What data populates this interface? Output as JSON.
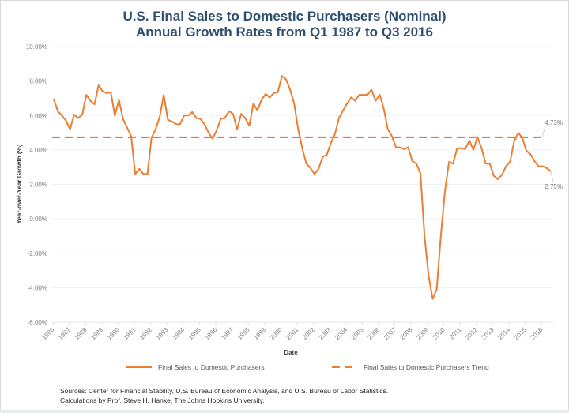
{
  "chart_data": {
    "type": "line",
    "title": "U.S. Final Sales to Domestic Purchasers (Nominal)",
    "subtitle": "Annual Growth Rates from Q1 1987 to Q3 2016",
    "xlabel": "Date",
    "ylabel": "Year-over-Year Growth (%)",
    "ylim": [
      -6,
      10
    ],
    "yticks": [
      "10.00%",
      "8.00%",
      "6.00%",
      "4.00%",
      "2.00%",
      "0.00%",
      "-2.00%",
      "-4.00%",
      "-6.00%"
    ],
    "ytick_values": [
      10,
      8,
      6,
      4,
      2,
      0,
      -2,
      -4,
      -6
    ],
    "xticks": [
      "1986",
      "1987",
      "1988",
      "1989",
      "1990",
      "1991",
      "1992",
      "1993",
      "1994",
      "1995",
      "1996",
      "1997",
      "1998",
      "1999",
      "2000",
      "2001",
      "2002",
      "2003",
      "2004",
      "2005",
      "2006",
      "2007",
      "2008",
      "2009",
      "2010",
      "2011",
      "2012",
      "2013",
      "2014",
      "2015",
      "2016"
    ],
    "x_start": "Q1 1987",
    "x_end": "Q3 2016",
    "grid": true,
    "legend_position": "bottom",
    "series": [
      {
        "name": "Final Sales to Domestic Purchasers",
        "color": "#ed7d31",
        "style": "solid",
        "values": [
          6.95,
          6.25,
          6.0,
          5.7,
          5.2,
          6.05,
          5.85,
          6.05,
          7.2,
          6.85,
          6.65,
          7.75,
          7.4,
          7.3,
          7.35,
          6.0,
          6.9,
          5.8,
          5.3,
          4.8,
          2.6,
          2.9,
          2.6,
          2.6,
          4.7,
          5.2,
          5.9,
          7.2,
          5.75,
          5.65,
          5.5,
          5.5,
          6.0,
          6.0,
          6.2,
          5.85,
          5.8,
          5.5,
          5.0,
          4.65,
          5.15,
          5.8,
          5.85,
          6.25,
          6.1,
          5.2,
          6.1,
          5.85,
          5.4,
          6.7,
          6.3,
          6.9,
          7.25,
          7.05,
          7.3,
          7.35,
          8.3,
          8.1,
          7.5,
          6.7,
          5.2,
          4.1,
          3.2,
          2.95,
          2.6,
          2.9,
          3.6,
          3.7,
          4.4,
          4.9,
          5.85,
          6.3,
          6.7,
          7.05,
          6.85,
          7.2,
          7.2,
          7.2,
          7.5,
          6.85,
          7.2,
          6.4,
          5.2,
          4.8,
          4.15,
          4.15,
          4.05,
          4.15,
          3.35,
          3.2,
          2.65,
          -1.0,
          -3.3,
          -4.65,
          -4.1,
          -1.0,
          1.6,
          3.3,
          3.2,
          4.1,
          4.1,
          4.05,
          4.55,
          4.0,
          4.75,
          4.1,
          3.2,
          3.2,
          2.5,
          2.3,
          2.55,
          3.05,
          3.3,
          4.5,
          5.0,
          4.7,
          3.95,
          3.75,
          3.35,
          3.05,
          3.05,
          2.95,
          2.75
        ]
      },
      {
        "name": "Final Sales to Domestic Purchasers Trend",
        "color": "#ed7d31",
        "style": "dashed",
        "value": 4.73
      }
    ],
    "annotations": [
      {
        "text": "4.73%",
        "refers_to": "trend value"
      },
      {
        "text": "2.75%",
        "refers_to": "last value Q3 2016"
      }
    ]
  },
  "legend": {
    "series1_label": "Final Sales to Domestic Purchasers",
    "series2_label": "Final Sales to Domestic Purchasers Trend"
  },
  "footer": {
    "line1": "Sources: Center for Financial Stability, U.S. Bureau of Economic Analysis, and U.S. Bureau of Labor Statistics.",
    "line2": "Calculations by Prof. Steve H. Hanke, The Johns Hopkins University."
  }
}
